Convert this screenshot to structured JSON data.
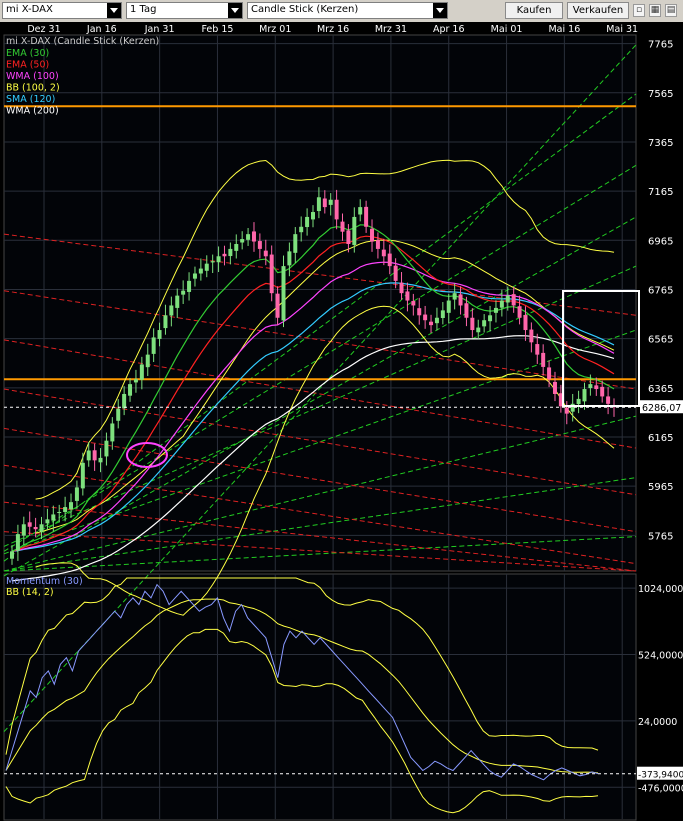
{
  "toolbar": {
    "instrument": "mi X-DAX",
    "interval": "1 Tag",
    "chart_type": "Candle Stick (Kerzen)",
    "buy_label": "Kaufen",
    "sell_label": "Verkaufen"
  },
  "colors": {
    "background": "#000000",
    "grid": "#2a2f3a",
    "candle_up": "#7ee07e",
    "candle_down": "#ff66aa",
    "ema30": "#33cc33",
    "ema50": "#ff2222",
    "wma100": "#ff44ff",
    "bb": "#ffff44",
    "sma120": "#33ccff",
    "wma200": "#ffffff",
    "resistance": "#ff9900",
    "trend_green": "#22cc22",
    "trend_red": "#dd2222",
    "momentum": "#8899ff",
    "highlight_box": "#ffffff",
    "marker_circle": "#ff44ff"
  },
  "chart_data": [
    {
      "type": "candlestick",
      "title": "mi X-DAX (Candle Stick (Kerzen)",
      "x_labels": [
        "Dez 31",
        "Jan 16",
        "Jan 31",
        "Feb 15",
        "Mrz 01",
        "Mrz 16",
        "Mrz 31",
        "Apr 16",
        "Mai 01",
        "Mai 16",
        "Mai 31"
      ],
      "y_ticks": [
        "7765",
        "7565",
        "7365",
        "7165",
        "6965",
        "6765",
        "6565",
        "6365",
        "6165",
        "5965",
        "5765"
      ],
      "ylim": [
        5620,
        7800
      ],
      "last_price_label": "6286,07",
      "last_price": 6286.07,
      "resistance_levels": [
        7510,
        6400
      ],
      "legend": [
        {
          "label": "EMA (30)",
          "color": "#33cc33"
        },
        {
          "label": "EMA (50)",
          "color": "#ff2222"
        },
        {
          "label": "WMA (100)",
          "color": "#ff44ff"
        },
        {
          "label": "BB (100, 2)",
          "color": "#ffff44"
        },
        {
          "label": "SMA (120)",
          "color": "#33ccff"
        },
        {
          "label": "WMA (200)",
          "color": "#ffffff"
        }
      ],
      "close": [
        5700,
        5770,
        5810,
        5800,
        5790,
        5810,
        5830,
        5850,
        5860,
        5880,
        5900,
        5960,
        6060,
        6110,
        6070,
        6080,
        6150,
        6220,
        6280,
        6340,
        6380,
        6400,
        6460,
        6500,
        6570,
        6600,
        6660,
        6700,
        6740,
        6760,
        6800,
        6830,
        6850,
        6870,
        6880,
        6900,
        6900,
        6930,
        6950,
        6970,
        6990,
        6960,
        6930,
        6900,
        6750,
        6650,
        6860,
        6920,
        6990,
        7020,
        7060,
        7080,
        7140,
        7100,
        7130,
        7050,
        7000,
        6950,
        7060,
        7100,
        7020,
        6960,
        6930,
        6900,
        6860,
        6800,
        6750,
        6720,
        6700,
        6660,
        6640,
        6620,
        6650,
        6680,
        6720,
        6750,
        6700,
        6650,
        6600,
        6610,
        6640,
        6660,
        6690,
        6720,
        6740,
        6700,
        6650,
        6600,
        6550,
        6500,
        6450,
        6400,
        6340,
        6290,
        6260,
        6300,
        6320,
        6360,
        6380,
        6360,
        6330,
        6300,
        6286
      ]
    },
    {
      "type": "line",
      "title": "Momentum (30)",
      "legend": [
        {
          "label": "Momentum (30)",
          "color": "#8899ff"
        },
        {
          "label": "BB (14, 2)",
          "color": "#ffff44"
        }
      ],
      "y_ticks": [
        "1024,0000",
        "524,0000",
        "24,0000",
        "-476,0000"
      ],
      "ylim": [
        -700,
        1100
      ],
      "last_value_label": "-373,9400",
      "last_value": -373.94,
      "values": [
        -350,
        -200,
        -50,
        100,
        250,
        200,
        350,
        400,
        300,
        450,
        500,
        400,
        550,
        600,
        650,
        700,
        750,
        800,
        850,
        800,
        900,
        950,
        900,
        1000,
        950,
        1050,
        1000,
        900,
        950,
        1000,
        950,
        900,
        850,
        880,
        900,
        950,
        800,
        700,
        850,
        900,
        800,
        750,
        700,
        650,
        500,
        350,
        600,
        700,
        650,
        700,
        650,
        600,
        650,
        600,
        550,
        500,
        450,
        400,
        350,
        300,
        250,
        200,
        150,
        100,
        50,
        -50,
        -150,
        -250,
        -300,
        -350,
        -320,
        -280,
        -300,
        -330,
        -350,
        -300,
        -250,
        -200,
        -250,
        -300,
        -350,
        -380,
        -400,
        -350,
        -300,
        -320,
        -350,
        -380,
        -400,
        -420,
        -380,
        -350,
        -330,
        -350,
        -370,
        -390,
        -380,
        -360,
        -373
      ]
    }
  ]
}
